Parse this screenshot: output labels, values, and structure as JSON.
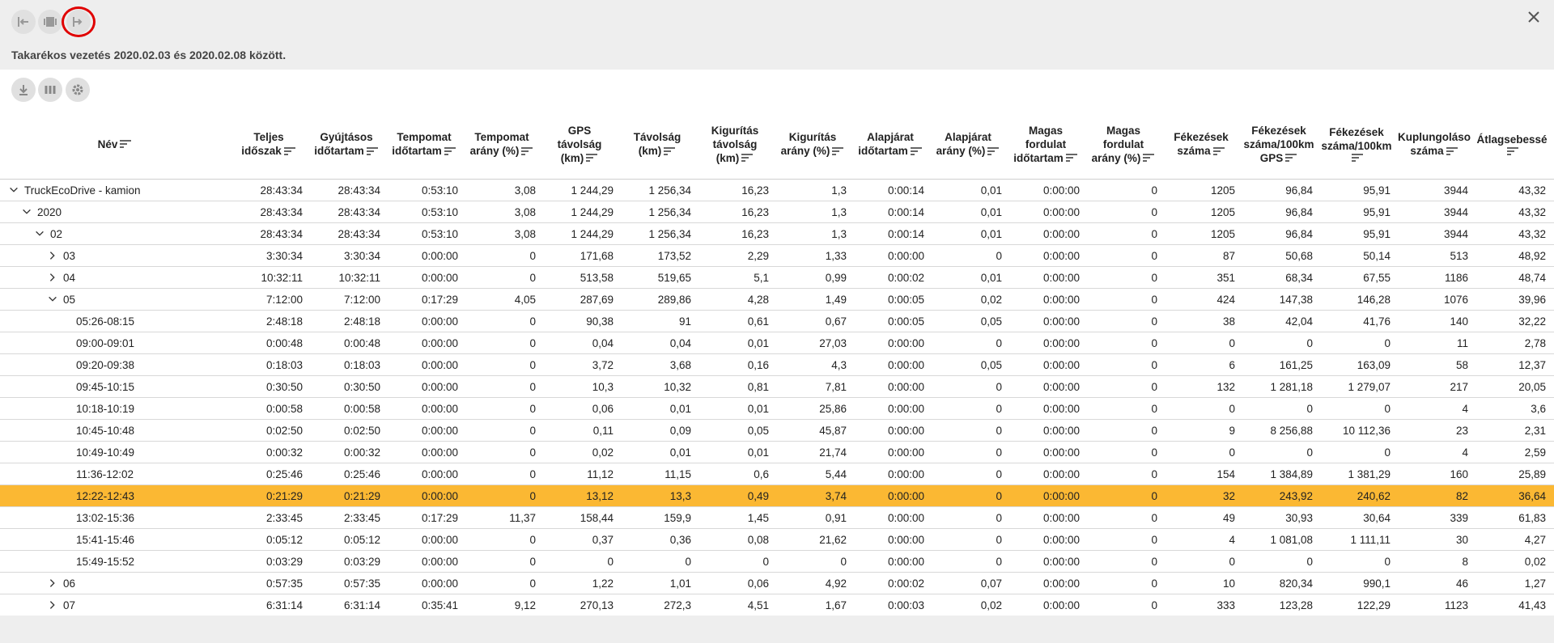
{
  "header": {
    "title": "Takarékos vezetés 2020.02.03 és 2020.02.08 között."
  },
  "table": {
    "columns": [
      [
        "Név"
      ],
      [
        "Teljes",
        "időszak"
      ],
      [
        "Gyújtásos",
        "időtartam"
      ],
      [
        "Tempomat",
        "időtartam"
      ],
      [
        "Tempomat",
        "arány (%)"
      ],
      [
        "GPS",
        "távolság",
        "(km)"
      ],
      [
        "Távolság",
        "(km)"
      ],
      [
        "Kigurítás",
        "távolság",
        "(km)"
      ],
      [
        "Kigurítás",
        "arány (%)"
      ],
      [
        "Alapjárat",
        "időtartam"
      ],
      [
        "Alapjárat",
        "arány (%)"
      ],
      [
        "Magas",
        "fordulat",
        "időtartam"
      ],
      [
        "Magas",
        "fordulat",
        "arány (%)"
      ],
      [
        "Fékezések",
        "száma"
      ],
      [
        "Fékezések",
        "száma/100km",
        "GPS"
      ],
      [
        "Fékezések",
        "száma/100km"
      ],
      [
        "Kuplungoláso",
        "száma"
      ],
      [
        "Átlagsebessé"
      ]
    ],
    "rows": [
      {
        "level": 0,
        "expanded": true,
        "cells": [
          "TruckEcoDrive - kamion",
          "28:43:34",
          "28:43:34",
          "0:53:10",
          "3,08",
          "1 244,29",
          "1 256,34",
          "16,23",
          "1,3",
          "0:00:14",
          "0,01",
          "0:00:00",
          "0",
          "1205",
          "96,84",
          "95,91",
          "3944",
          "43,32"
        ]
      },
      {
        "level": 1,
        "expanded": true,
        "cells": [
          "2020",
          "28:43:34",
          "28:43:34",
          "0:53:10",
          "3,08",
          "1 244,29",
          "1 256,34",
          "16,23",
          "1,3",
          "0:00:14",
          "0,01",
          "0:00:00",
          "0",
          "1205",
          "96,84",
          "95,91",
          "3944",
          "43,32"
        ]
      },
      {
        "level": 2,
        "expanded": true,
        "cells": [
          "02",
          "28:43:34",
          "28:43:34",
          "0:53:10",
          "3,08",
          "1 244,29",
          "1 256,34",
          "16,23",
          "1,3",
          "0:00:14",
          "0,01",
          "0:00:00",
          "0",
          "1205",
          "96,84",
          "95,91",
          "3944",
          "43,32"
        ]
      },
      {
        "level": 3,
        "expanded": false,
        "cells": [
          "03",
          "3:30:34",
          "3:30:34",
          "0:00:00",
          "0",
          "171,68",
          "173,52",
          "2,29",
          "1,33",
          "0:00:00",
          "0",
          "0:00:00",
          "0",
          "87",
          "50,68",
          "50,14",
          "513",
          "48,92"
        ]
      },
      {
        "level": 3,
        "expanded": false,
        "cells": [
          "04",
          "10:32:11",
          "10:32:11",
          "0:00:00",
          "0",
          "513,58",
          "519,65",
          "5,1",
          "0,99",
          "0:00:02",
          "0,01",
          "0:00:00",
          "0",
          "351",
          "68,34",
          "67,55",
          "1186",
          "48,74"
        ]
      },
      {
        "level": 3,
        "expanded": true,
        "cells": [
          "05",
          "7:12:00",
          "7:12:00",
          "0:17:29",
          "4,05",
          "287,69",
          "289,86",
          "4,28",
          "1,49",
          "0:00:05",
          "0,02",
          "0:00:00",
          "0",
          "424",
          "147,38",
          "146,28",
          "1076",
          "39,96"
        ]
      },
      {
        "level": 4,
        "cells": [
          "05:26-08:15",
          "2:48:18",
          "2:48:18",
          "0:00:00",
          "0",
          "90,38",
          "91",
          "0,61",
          "0,67",
          "0:00:05",
          "0,05",
          "0:00:00",
          "0",
          "38",
          "42,04",
          "41,76",
          "140",
          "32,22"
        ]
      },
      {
        "level": 4,
        "cells": [
          "09:00-09:01",
          "0:00:48",
          "0:00:48",
          "0:00:00",
          "0",
          "0,04",
          "0,04",
          "0,01",
          "27,03",
          "0:00:00",
          "0",
          "0:00:00",
          "0",
          "0",
          "0",
          "0",
          "11",
          "2,78"
        ]
      },
      {
        "level": 4,
        "cells": [
          "09:20-09:38",
          "0:18:03",
          "0:18:03",
          "0:00:00",
          "0",
          "3,72",
          "3,68",
          "0,16",
          "4,3",
          "0:00:00",
          "0,05",
          "0:00:00",
          "0",
          "6",
          "161,25",
          "163,09",
          "58",
          "12,37"
        ]
      },
      {
        "level": 4,
        "cells": [
          "09:45-10:15",
          "0:30:50",
          "0:30:50",
          "0:00:00",
          "0",
          "10,3",
          "10,32",
          "0,81",
          "7,81",
          "0:00:00",
          "0",
          "0:00:00",
          "0",
          "132",
          "1 281,18",
          "1 279,07",
          "217",
          "20,05"
        ]
      },
      {
        "level": 4,
        "cells": [
          "10:18-10:19",
          "0:00:58",
          "0:00:58",
          "0:00:00",
          "0",
          "0,06",
          "0,01",
          "0,01",
          "25,86",
          "0:00:00",
          "0",
          "0:00:00",
          "0",
          "0",
          "0",
          "0",
          "4",
          "3,6"
        ]
      },
      {
        "level": 4,
        "cells": [
          "10:45-10:48",
          "0:02:50",
          "0:02:50",
          "0:00:00",
          "0",
          "0,11",
          "0,09",
          "0,05",
          "45,87",
          "0:00:00",
          "0",
          "0:00:00",
          "0",
          "9",
          "8 256,88",
          "10 112,36",
          "23",
          "2,31"
        ]
      },
      {
        "level": 4,
        "cells": [
          "10:49-10:49",
          "0:00:32",
          "0:00:32",
          "0:00:00",
          "0",
          "0,02",
          "0,01",
          "0,01",
          "21,74",
          "0:00:00",
          "0",
          "0:00:00",
          "0",
          "0",
          "0",
          "0",
          "4",
          "2,59"
        ]
      },
      {
        "level": 4,
        "cells": [
          "11:36-12:02",
          "0:25:46",
          "0:25:46",
          "0:00:00",
          "0",
          "11,12",
          "11,15",
          "0,6",
          "5,44",
          "0:00:00",
          "0",
          "0:00:00",
          "0",
          "154",
          "1 384,89",
          "1 381,29",
          "160",
          "25,89"
        ]
      },
      {
        "level": 4,
        "selected": true,
        "cells": [
          "12:22-12:43",
          "0:21:29",
          "0:21:29",
          "0:00:00",
          "0",
          "13,12",
          "13,3",
          "0,49",
          "3,74",
          "0:00:00",
          "0",
          "0:00:00",
          "0",
          "32",
          "243,92",
          "240,62",
          "82",
          "36,64"
        ]
      },
      {
        "level": 4,
        "cells": [
          "13:02-15:36",
          "2:33:45",
          "2:33:45",
          "0:17:29",
          "11,37",
          "158,44",
          "159,9",
          "1,45",
          "0,91",
          "0:00:00",
          "0",
          "0:00:00",
          "0",
          "49",
          "30,93",
          "30,64",
          "339",
          "61,83"
        ]
      },
      {
        "level": 4,
        "cells": [
          "15:41-15:46",
          "0:05:12",
          "0:05:12",
          "0:00:00",
          "0",
          "0,37",
          "0,36",
          "0,08",
          "21,62",
          "0:00:00",
          "0",
          "0:00:00",
          "0",
          "4",
          "1 081,08",
          "1 111,11",
          "30",
          "4,27"
        ]
      },
      {
        "level": 4,
        "cells": [
          "15:49-15:52",
          "0:03:29",
          "0:03:29",
          "0:00:00",
          "0",
          "0",
          "0",
          "0",
          "0",
          "0:00:00",
          "0",
          "0:00:00",
          "0",
          "0",
          "0",
          "0",
          "8",
          "0,02"
        ]
      },
      {
        "level": 3,
        "expanded": false,
        "cells": [
          "06",
          "0:57:35",
          "0:57:35",
          "0:00:00",
          "0",
          "1,22",
          "1,01",
          "0,06",
          "4,92",
          "0:00:02",
          "0,07",
          "0:00:00",
          "0",
          "10",
          "820,34",
          "990,1",
          "46",
          "1,27"
        ]
      },
      {
        "level": 3,
        "expanded": false,
        "cells": [
          "07",
          "6:31:14",
          "6:31:14",
          "0:35:41",
          "9,12",
          "270,13",
          "272,3",
          "4,51",
          "1,67",
          "0:00:03",
          "0,02",
          "0:00:00",
          "0",
          "333",
          "123,28",
          "122,29",
          "1123",
          "41,43"
        ]
      }
    ]
  }
}
